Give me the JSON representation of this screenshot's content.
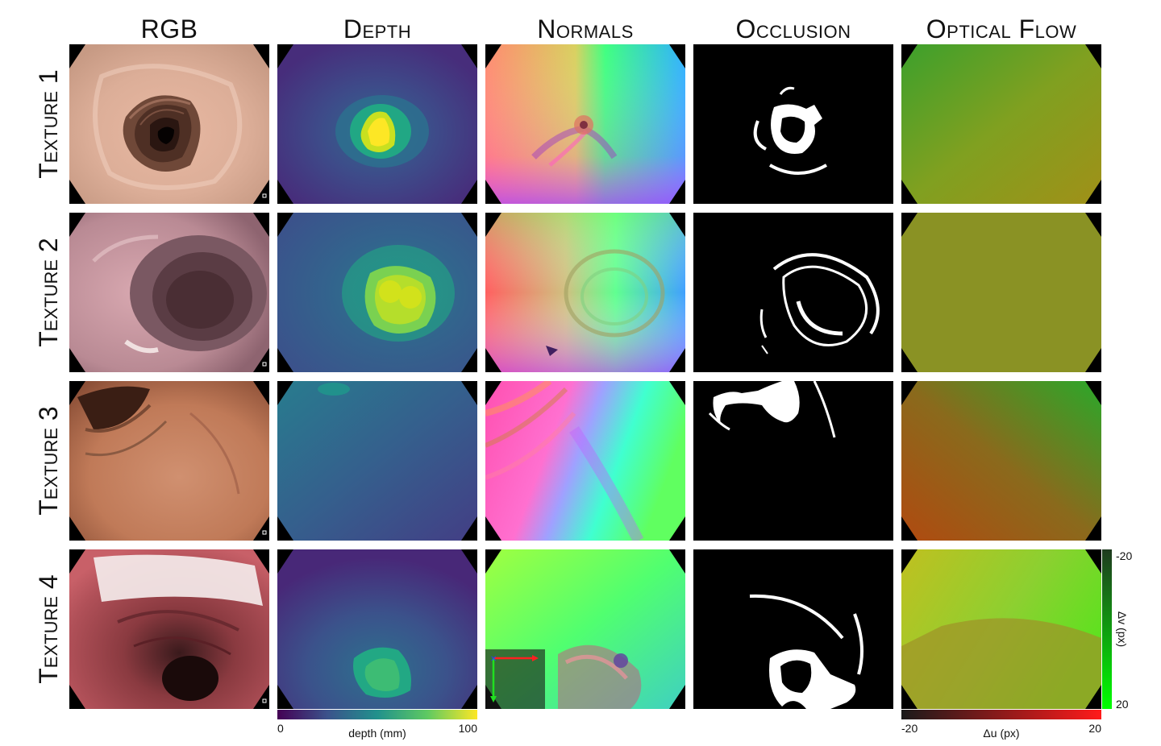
{
  "figure": {
    "columns": [
      "RGB",
      "Depth",
      "Normals",
      "Occlusion",
      "Optical Flow"
    ],
    "rows": [
      "Texture 1",
      "Texture 2",
      "Texture 3",
      "Texture 4"
    ],
    "depth_colorbar": {
      "label": "depth (mm)",
      "min_label": "0",
      "max_label": "100",
      "colormap": "viridis",
      "colors": [
        "#440154",
        "#3b528b",
        "#21918c",
        "#5ec962",
        "#fde725"
      ]
    },
    "flow_colorbar_u": {
      "label": "Δu (px)",
      "min_label": "-20",
      "max_label": "20",
      "colors": [
        "#1a1a1a",
        "#ff1a1a"
      ]
    },
    "flow_colorbar_v": {
      "label": "Δv (px)",
      "min_label": "-20",
      "max_label": "20",
      "colors": [
        "#1f3a1f",
        "#00ff00"
      ]
    }
  }
}
